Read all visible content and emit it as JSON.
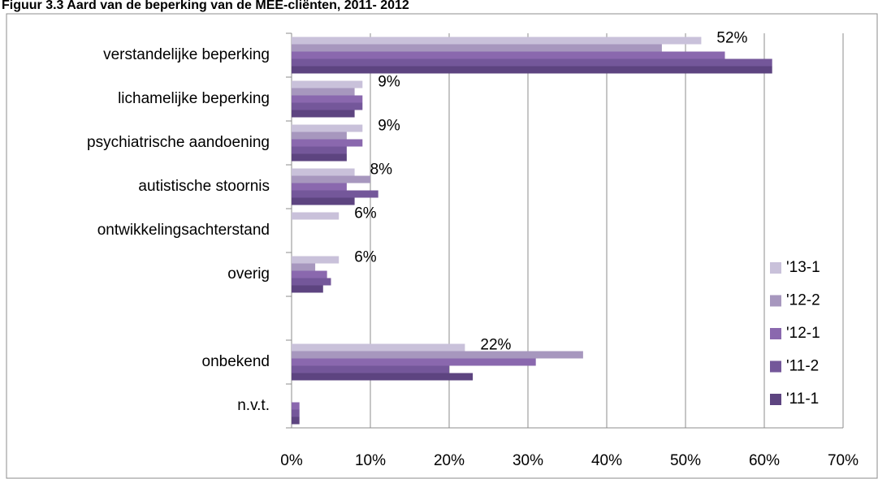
{
  "chart_data": {
    "type": "hbar",
    "title": "Figuur 3.3 Aard van de beperking van de MEE-cliënten, 2011- 2012",
    "categories": [
      "verstandelijke beperking",
      "lichamelijke beperking",
      "psychiatrische aandoening",
      "autistische stoornis",
      "ontwikkelingsachterstand",
      "overig",
      null,
      "onbekend",
      "n.v.t."
    ],
    "series": [
      {
        "name": "'13-1",
        "color": "#c9c1da",
        "values": [
          52,
          9,
          9,
          8,
          6,
          6,
          null,
          22,
          null
        ],
        "value_labels": [
          "52%",
          "9%",
          "9%",
          "8%",
          "6%",
          "6%",
          null,
          "22%",
          null
        ]
      },
      {
        "name": "'12-2",
        "color": "#a797be",
        "values": [
          47,
          8,
          7,
          10,
          null,
          3,
          null,
          37,
          null
        ]
      },
      {
        "name": "'12-1",
        "color": "#8a68ae",
        "values": [
          55,
          9,
          9,
          7,
          null,
          4.5,
          null,
          31,
          1
        ]
      },
      {
        "name": "'11-2",
        "color": "#74579a",
        "values": [
          61,
          9,
          7,
          11,
          null,
          5,
          null,
          20,
          1
        ]
      },
      {
        "name": "'11-1",
        "color": "#5d4480",
        "values": [
          61,
          8,
          7,
          8,
          null,
          4,
          null,
          23,
          1
        ]
      }
    ],
    "xlim": [
      0,
      70
    ],
    "xticks": [
      {
        "value": 0,
        "label": "0%"
      },
      {
        "value": 10,
        "label": "10%"
      },
      {
        "value": 20,
        "label": "20%"
      },
      {
        "value": 30,
        "label": "30%"
      },
      {
        "value": 40,
        "label": "40%"
      },
      {
        "value": 50,
        "label": "50%"
      },
      {
        "value": 60,
        "label": "60%"
      },
      {
        "value": 70,
        "label": "70%"
      }
    ],
    "grid": true,
    "legend": "right"
  }
}
